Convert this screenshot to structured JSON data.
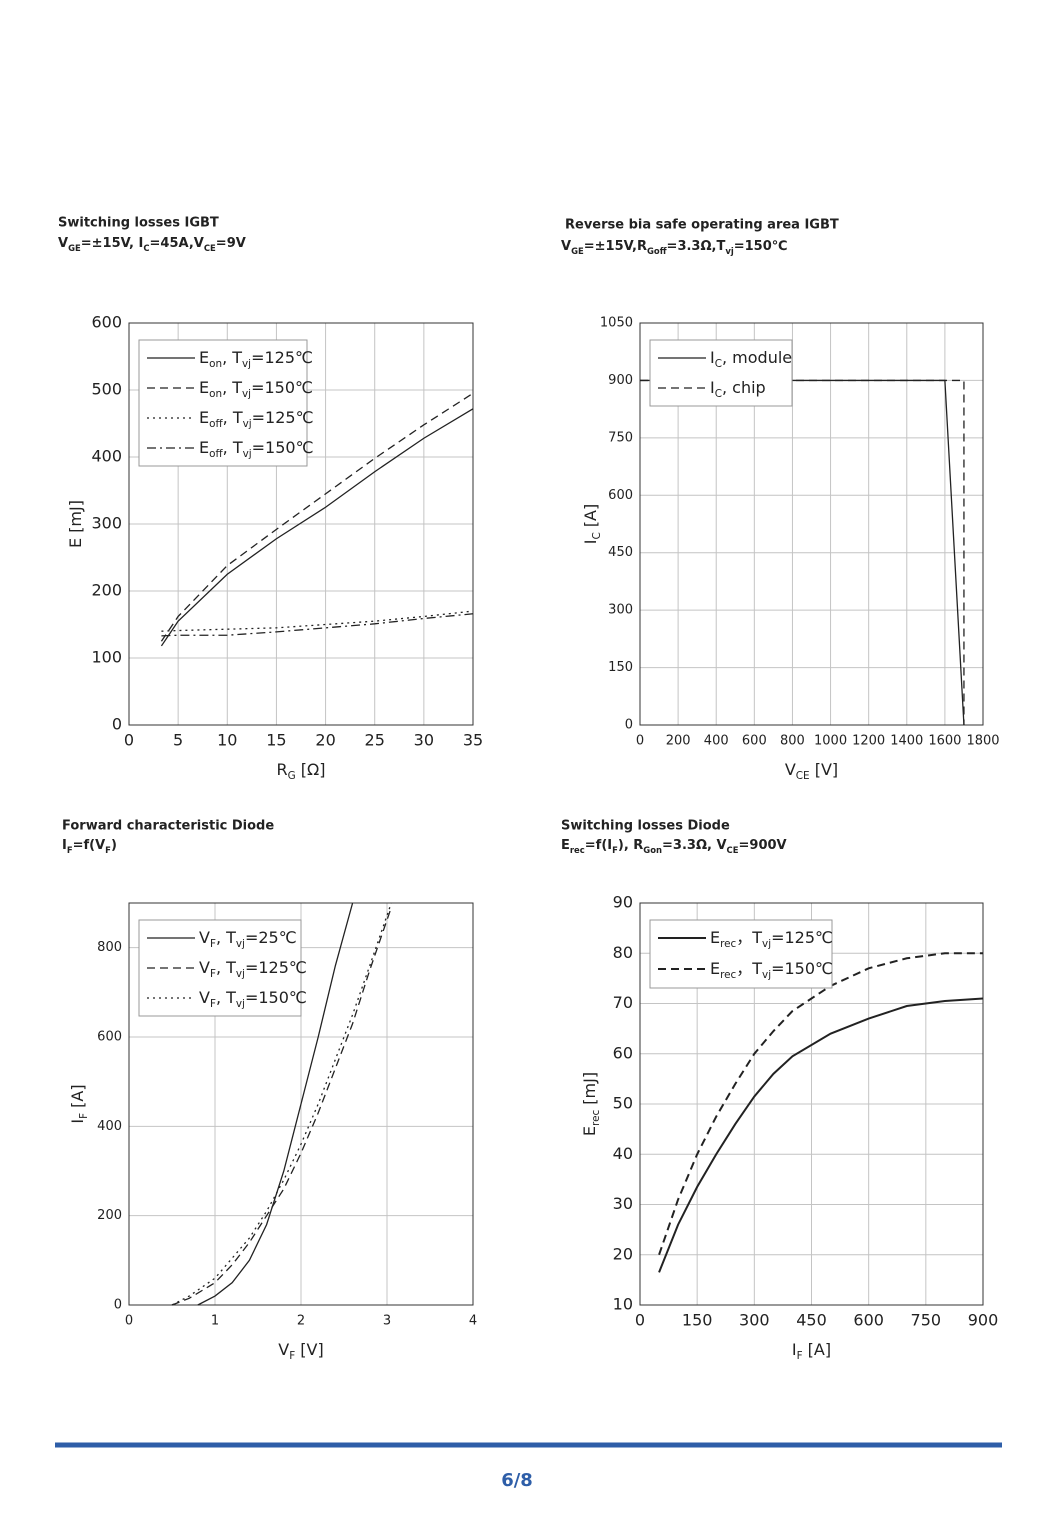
{
  "chart_data": [
    {
      "type": "line",
      "title": "Switching losses IGBT",
      "subtitle": [
        "V",
        "GE",
        "=±15V, I",
        "C",
        "=45A,V",
        "CE",
        "=9V"
      ],
      "xlabel": [
        "R",
        "G",
        " [Ω]"
      ],
      "ylabel": [
        "E [mJ]"
      ],
      "xlim": [
        0,
        35
      ],
      "xticks": [
        0,
        5,
        10,
        15,
        20,
        25,
        30,
        35
      ],
      "ylim": [
        0,
        600
      ],
      "yticks": [
        0,
        100,
        200,
        300,
        400,
        500,
        600
      ],
      "grid": true,
      "legend": "upper left",
      "series": [
        {
          "name": [
            "E",
            "on",
            ", T",
            "vj",
            "=125℃"
          ],
          "color": "#222",
          "dash": "solid",
          "x": [
            3.3,
            5,
            10,
            15,
            20,
            25,
            30,
            35
          ],
          "values": [
            118,
            155,
            225,
            278,
            325,
            378,
            428,
            472
          ]
        },
        {
          "name": [
            "E",
            "on",
            ", T",
            "vj",
            "=150℃"
          ],
          "color": "#222",
          "dash": "dashed",
          "x": [
            3.3,
            5,
            10,
            15,
            20,
            25,
            30,
            35
          ],
          "values": [
            125,
            162,
            238,
            292,
            345,
            398,
            448,
            495
          ]
        },
        {
          "name": [
            "E",
            "off",
            ", T",
            "vj",
            "=125℃"
          ],
          "color": "#222",
          "dash": "dotted",
          "x": [
            3.3,
            5,
            10,
            15,
            20,
            25,
            30,
            35
          ],
          "values": [
            140,
            141,
            143,
            145,
            150,
            155,
            162,
            170
          ]
        },
        {
          "name": [
            "E",
            "off",
            ", T",
            "vj",
            "=150℃"
          ],
          "color": "#222",
          "dash": "dashdot",
          "x": [
            3.3,
            5,
            10,
            15,
            20,
            25,
            30,
            35
          ],
          "values": [
            133,
            134,
            134,
            139,
            145,
            151,
            159,
            166
          ]
        }
      ]
    },
    {
      "type": "line",
      "title": "Reverse bia safe operating area IGBT",
      "subtitle": [
        "V",
        "GE",
        "=±15V,R",
        "Goff",
        "=3.3Ω,T",
        "vj",
        "=150℃"
      ],
      "xlabel": [
        "V",
        "CE",
        " [V]"
      ],
      "ylabel": [
        "I",
        "C",
        " [A]"
      ],
      "xlim": [
        0,
        1800
      ],
      "xticks": [
        0,
        200,
        400,
        600,
        800,
        1000,
        1200,
        1400,
        1600,
        1800
      ],
      "ylim": [
        0,
        1050
      ],
      "yticks": [
        0,
        150,
        300,
        450,
        600,
        750,
        900,
        1050
      ],
      "grid": true,
      "legend": "upper left",
      "series": [
        {
          "name": [
            "I",
            "C",
            ", module"
          ],
          "color": "#222",
          "dash": "solid",
          "x": [
            0,
            1600,
            1700
          ],
          "values": [
            900,
            900,
            0
          ]
        },
        {
          "name": [
            "I",
            "C",
            ", chip"
          ],
          "color": "#222",
          "dash": "dashed",
          "x": [
            0,
            1700,
            1700
          ],
          "values": [
            900,
            900,
            0
          ]
        }
      ]
    },
    {
      "type": "line",
      "title": "Forward characteristic Diode",
      "subtitle": [
        "I",
        "F",
        "=f(V",
        "F",
        ")"
      ],
      "xlabel": [
        "V",
        "F",
        " [V]"
      ],
      "ylabel": [
        "I",
        "F",
        " [A]"
      ],
      "xlim": [
        0,
        4
      ],
      "xticks": [
        0,
        1,
        2,
        3,
        4
      ],
      "ylim": [
        0,
        900
      ],
      "yticks": [
        0,
        200,
        400,
        600,
        800
      ],
      "grid": true,
      "legend": "upper left",
      "series": [
        {
          "name": [
            "V",
            "F",
            ", T",
            "vj",
            "=25℃"
          ],
          "color": "#222",
          "dash": "solid",
          "x": [
            0.8,
            1,
            1.2,
            1.4,
            1.6,
            1.8,
            2,
            2.2,
            2.4,
            2.6
          ],
          "values": [
            0,
            20,
            50,
            100,
            180,
            300,
            450,
            600,
            760,
            900
          ]
        },
        {
          "name": [
            "V",
            "F",
            ", T",
            "vj",
            "=125℃"
          ],
          "color": "#222",
          "dash": "dashed",
          "x": [
            0.5,
            0.7,
            1,
            1.2,
            1.4,
            1.6,
            1.8,
            2,
            2.2,
            2.4,
            2.6,
            2.8,
            3.05
          ],
          "values": [
            0,
            15,
            50,
            90,
            140,
            200,
            260,
            340,
            430,
            530,
            630,
            750,
            890
          ]
        },
        {
          "name": [
            "V",
            "F",
            ", T",
            "vj",
            "=150℃"
          ],
          "color": "#222",
          "dash": "dotted",
          "x": [
            0.5,
            0.7,
            1,
            1.2,
            1.4,
            1.6,
            1.8,
            2,
            2.2,
            2.4,
            2.6,
            2.8,
            3.05
          ],
          "values": [
            0,
            20,
            60,
            105,
            150,
            210,
            280,
            360,
            450,
            550,
            650,
            760,
            900
          ]
        }
      ]
    },
    {
      "type": "line",
      "title": "Switching losses Diode",
      "subtitle": [
        "E",
        "rec",
        "=f(I",
        "F",
        "), R",
        "Gon",
        "=3.3Ω, V",
        "CE",
        "=900V"
      ],
      "xlabel": [
        "I",
        "F",
        " [A]"
      ],
      "ylabel": [
        "E",
        "rec",
        " [mJ]"
      ],
      "xlim": [
        0,
        900
      ],
      "xticks": [
        0,
        150,
        300,
        450,
        600,
        750,
        900
      ],
      "ylim": [
        10,
        90
      ],
      "yticks": [
        10,
        20,
        30,
        40,
        50,
        60,
        70,
        80,
        90
      ],
      "grid": true,
      "legend": "upper left",
      "series": [
        {
          "name": [
            "E",
            "rec",
            "，T",
            "vj",
            "=125℃"
          ],
          "color": "#222",
          "dash": "solid",
          "x": [
            50,
            100,
            150,
            200,
            250,
            300,
            350,
            400,
            500,
            600,
            700,
            800,
            900
          ],
          "values": [
            16.5,
            26,
            33.5,
            40,
            46,
            51.5,
            56,
            59.5,
            64,
            67,
            69.5,
            70.5,
            71
          ]
        },
        {
          "name": [
            "E",
            "rec",
            "，T",
            "vj",
            "=150℃"
          ],
          "color": "#222",
          "dash": "dashed",
          "x": [
            50,
            100,
            150,
            200,
            250,
            300,
            350,
            400,
            500,
            600,
            700,
            800,
            900
          ],
          "values": [
            20,
            31,
            40,
            47.5,
            54,
            60,
            64.5,
            68.5,
            73.5,
            77,
            79,
            80,
            80
          ]
        }
      ]
    }
  ],
  "footer": {
    "page": "6/8"
  }
}
